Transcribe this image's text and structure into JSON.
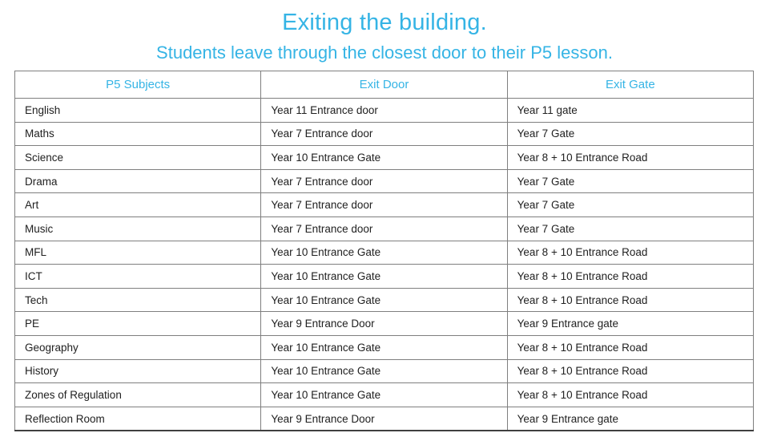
{
  "page": {
    "title": "Exiting the building.",
    "subtitle": "Students leave through the closest door to their P5 lesson."
  },
  "colors": {
    "accent": "#35b4e5",
    "grid_border": "#7f7f7f",
    "body_text": "#212121"
  },
  "table": {
    "columns": [
      "P5 Subjects",
      "Exit Door",
      "Exit Gate"
    ],
    "rows": [
      [
        "English",
        "Year 11 Entrance door",
        "Year 11 gate"
      ],
      [
        "Maths",
        "Year 7 Entrance door",
        "Year 7 Gate"
      ],
      [
        "Science",
        "Year 10 Entrance Gate",
        "Year 8 + 10 Entrance Road"
      ],
      [
        "Drama",
        "Year 7 Entrance door",
        "Year 7 Gate"
      ],
      [
        "Art",
        "Year 7 Entrance door",
        "Year 7 Gate"
      ],
      [
        "Music",
        "Year 7 Entrance door",
        "Year 7 Gate"
      ],
      [
        "MFL",
        "Year 10 Entrance Gate",
        "Year 8 + 10 Entrance Road"
      ],
      [
        "ICT",
        "Year 10 Entrance Gate",
        "Year 8 + 10 Entrance Road"
      ],
      [
        "Tech",
        "Year 10 Entrance Gate",
        "Year 8 + 10 Entrance Road"
      ],
      [
        "PE",
        "Year 9 Entrance Door",
        "Year 9 Entrance gate"
      ],
      [
        "Geography",
        "Year 10 Entrance Gate",
        "Year 8 + 10 Entrance Road"
      ],
      [
        "History",
        "Year 10 Entrance Gate",
        "Year 8 + 10 Entrance Road"
      ],
      [
        "Zones of Regulation",
        "Year 10 Entrance Gate",
        "Year 8 + 10 Entrance Road"
      ],
      [
        "Reflection Room",
        "Year 9 Entrance Door",
        "Year 9 Entrance gate"
      ]
    ]
  }
}
